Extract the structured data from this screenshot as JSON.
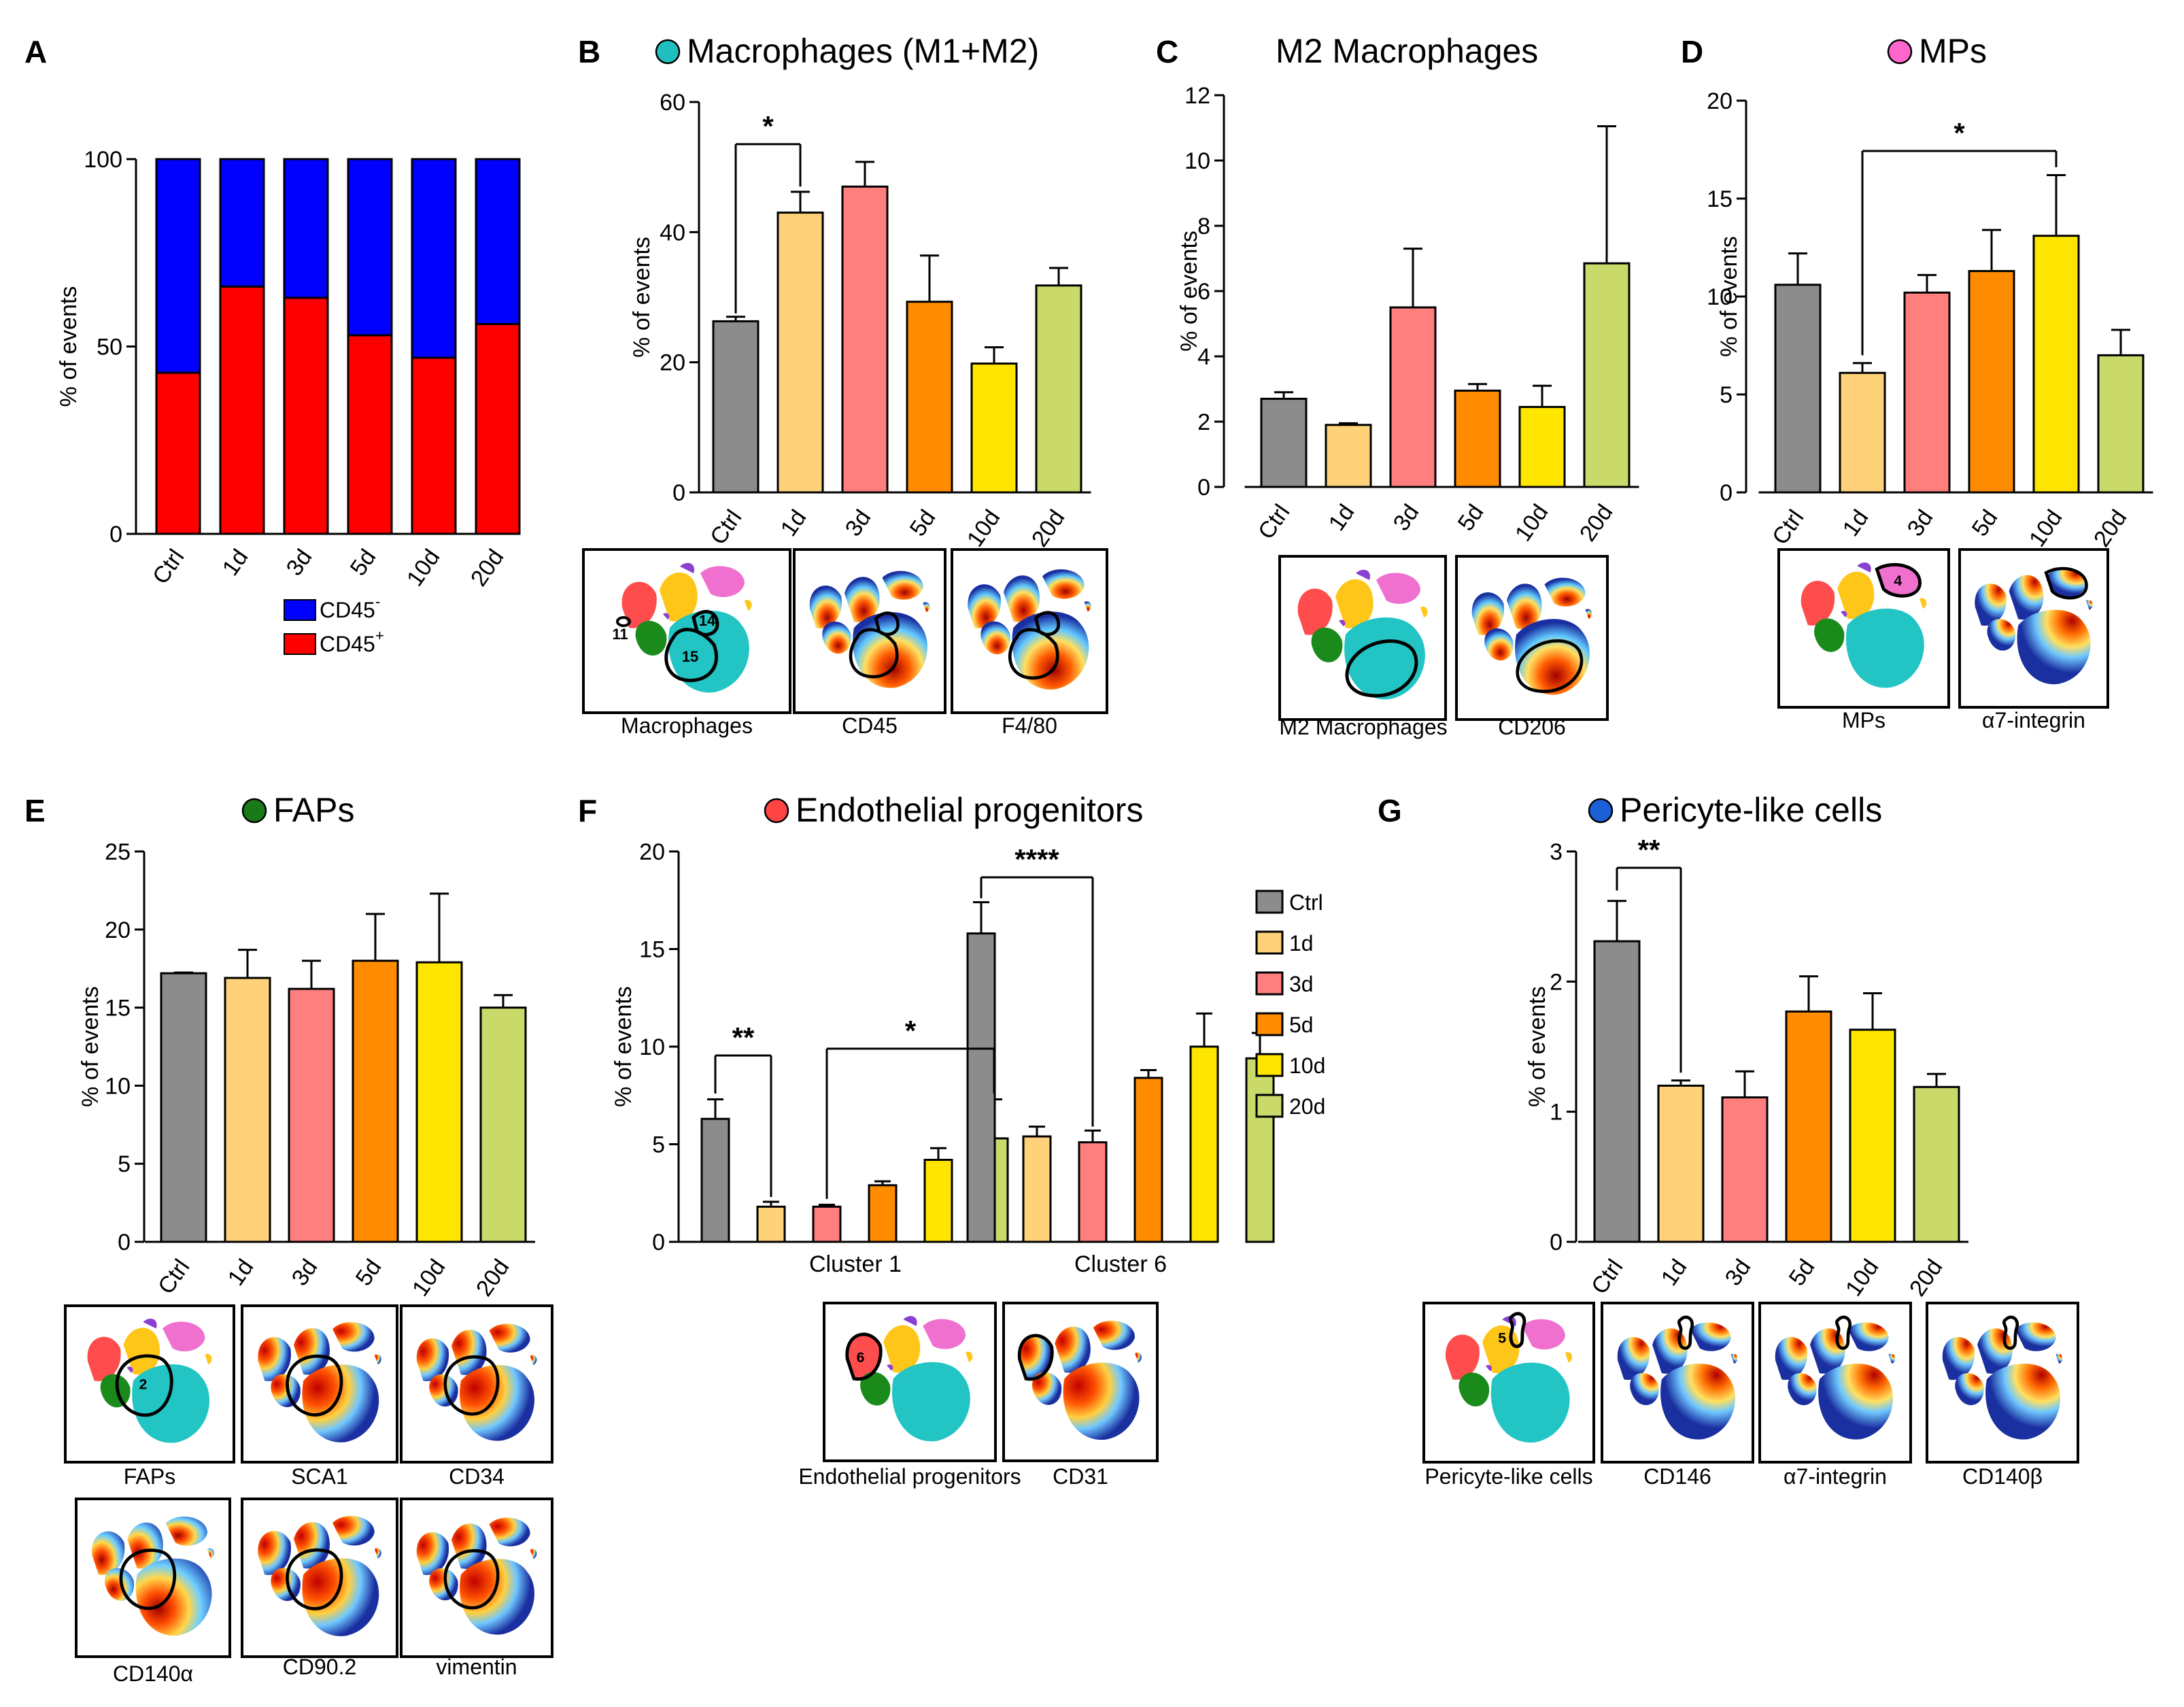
{
  "colors": {
    "ctrl": "#8c8c8c",
    "d1": "#ffd27a",
    "d3": "#ff7f7f",
    "d5": "#ff8c00",
    "d10": "#ffe600",
    "d20": "#c9d96a",
    "cd45_neg": "#0000ff",
    "cd45_pos": "#ff0000",
    "macrophage_dot": "#1fbfbf",
    "mp_dot": "#ff66cc",
    "fap_dot": "#1a7a1a",
    "endo_dot": "#ff4444",
    "pericyte_dot": "#1a5fd6"
  },
  "group_labels": [
    "Ctrl",
    "1d",
    "3d",
    "5d",
    "10d",
    "20d"
  ],
  "ylabel": "% of events",
  "panels": {
    "A": {
      "letter": "A",
      "legend": {
        "neg": "CD45",
        "neg_sup": "-",
        "pos": "CD45",
        "pos_sup": "+"
      }
    },
    "B": {
      "letter": "B",
      "title": "Macrophages (M1+M2)",
      "tsne": [
        {
          "label": "Macrophages",
          "clusters": [
            "11",
            "14",
            "15"
          ]
        },
        {
          "label": "CD45"
        },
        {
          "label": "F4/80"
        }
      ]
    },
    "C": {
      "letter": "C",
      "title": "M2 Macrophages",
      "tsne": [
        {
          "label": "M2 Macrophages"
        },
        {
          "label": "CD206"
        }
      ]
    },
    "D": {
      "letter": "D",
      "title": "MPs",
      "tsne": [
        {
          "label": "MPs",
          "clusters": [
            "4"
          ]
        },
        {
          "label": "α7-integrin"
        }
      ]
    },
    "E": {
      "letter": "E",
      "title": "FAPs",
      "tsne": [
        {
          "label": "FAPs",
          "clusters": [
            "2"
          ]
        },
        {
          "label": "SCA1"
        },
        {
          "label": "CD34"
        },
        {
          "label": "CD140α"
        },
        {
          "label": "CD90.2"
        },
        {
          "label": "vimentin"
        }
      ]
    },
    "F": {
      "letter": "F",
      "title": "Endothelial progenitors",
      "tsne": [
        {
          "label": "Endothelial progenitors",
          "clusters": [
            "6"
          ]
        },
        {
          "label": "CD31"
        }
      ]
    },
    "G": {
      "letter": "G",
      "title": "Pericyte-like cells",
      "tsne": [
        {
          "label": "Pericyte-like cells",
          "clusters": [
            "5"
          ]
        },
        {
          "label": "CD146"
        },
        {
          "label": "α7-integrin"
        },
        {
          "label": "CD140β"
        }
      ]
    }
  },
  "chart_data": [
    {
      "id": "A",
      "type": "bar",
      "stacked": true,
      "categories": [
        "Ctrl",
        "1d",
        "3d",
        "5d",
        "10d",
        "20d"
      ],
      "series": [
        {
          "name": "CD45+",
          "values": [
            43,
            66,
            63,
            53,
            47,
            56
          ]
        },
        {
          "name": "CD45-",
          "values": [
            57,
            34,
            37,
            47,
            53,
            44
          ]
        }
      ],
      "ylabel": "% of events",
      "ylim": [
        0,
        100
      ],
      "yticks": [
        0,
        50,
        100
      ]
    },
    {
      "id": "B",
      "type": "bar",
      "title": "Macrophages (M1+M2)",
      "categories": [
        "Ctrl",
        "1d",
        "3d",
        "5d",
        "10d",
        "20d"
      ],
      "values": [
        26.3,
        43,
        47,
        29.3,
        19.8,
        31.8
      ],
      "errors": [
        0.7,
        3.2,
        3.8,
        7.1,
        2.5,
        2.7
      ],
      "ylabel": "% of events",
      "ylim": [
        0,
        60
      ],
      "yticks": [
        0,
        20,
        40,
        60
      ],
      "significance": [
        {
          "from": "Ctrl",
          "to": "1d",
          "label": "*"
        }
      ]
    },
    {
      "id": "C",
      "type": "bar",
      "title": "M2 Macrophages",
      "categories": [
        "Ctrl",
        "1d",
        "3d",
        "5d",
        "10d",
        "20d"
      ],
      "values": [
        2.7,
        1.9,
        5.5,
        2.95,
        2.45,
        6.85
      ],
      "errors": [
        0.2,
        0.05,
        1.8,
        0.2,
        0.65,
        4.2
      ],
      "ylabel": "% of events",
      "ylim": [
        0,
        12
      ],
      "yticks": [
        0,
        2,
        4,
        6,
        8,
        10,
        12
      ]
    },
    {
      "id": "D",
      "type": "bar",
      "title": "MPs",
      "categories": [
        "Ctrl",
        "1d",
        "3d",
        "5d",
        "10d",
        "20d"
      ],
      "values": [
        10.6,
        6.1,
        10.2,
        11.3,
        13.1,
        7.0
      ],
      "errors": [
        1.6,
        0.5,
        0.9,
        2.1,
        3.1,
        1.3
      ],
      "ylabel": "% of events",
      "ylim": [
        0,
        20
      ],
      "yticks": [
        0,
        5,
        10,
        15,
        20
      ],
      "significance": [
        {
          "from": "1d",
          "to": "10d",
          "label": "*"
        }
      ]
    },
    {
      "id": "E",
      "type": "bar",
      "title": "FAPs",
      "categories": [
        "Ctrl",
        "1d",
        "3d",
        "5d",
        "10d",
        "20d"
      ],
      "values": [
        17.2,
        16.9,
        16.2,
        18.0,
        17.9,
        15.0
      ],
      "errors": [
        0.05,
        1.8,
        1.8,
        3.0,
        4.4,
        0.8
      ],
      "ylabel": "% of events",
      "ylim": [
        0,
        25
      ],
      "yticks": [
        0,
        5,
        10,
        15,
        20,
        25
      ]
    },
    {
      "id": "F",
      "type": "bar",
      "title": "Endothelial progenitors",
      "categories": [
        "Cluster 1",
        "Cluster 6"
      ],
      "series": [
        {
          "name": "Ctrl",
          "values": [
            6.3,
            15.8
          ],
          "errors": [
            1.0,
            1.6
          ]
        },
        {
          "name": "1d",
          "values": [
            1.8,
            5.4
          ],
          "errors": [
            0.25,
            0.5
          ]
        },
        {
          "name": "3d",
          "values": [
            1.8,
            5.1
          ],
          "errors": [
            0.1,
            0.6
          ]
        },
        {
          "name": "5d",
          "values": [
            2.9,
            8.4
          ],
          "errors": [
            0.2,
            0.4
          ]
        },
        {
          "name": "10d",
          "values": [
            4.2,
            10.0
          ],
          "errors": [
            0.6,
            1.7
          ]
        },
        {
          "name": "20d",
          "values": [
            5.3,
            9.4
          ],
          "errors": [
            2.0,
            1.3
          ]
        }
      ],
      "ylabel": "% of events",
      "ylim": [
        0,
        20
      ],
      "yticks": [
        0,
        5,
        10,
        15,
        20
      ],
      "significance": [
        {
          "group": "Cluster 1",
          "from": "Ctrl",
          "to": "1d",
          "label": "**"
        },
        {
          "group": "Cluster 1",
          "from": "3d",
          "to": "20d",
          "label": "*"
        },
        {
          "group": "Cluster 6",
          "from": "Ctrl",
          "to": "3d",
          "label": "****"
        }
      ],
      "legend": [
        "Ctrl",
        "1d",
        "3d",
        "5d",
        "10d",
        "20d"
      ]
    },
    {
      "id": "G",
      "type": "bar",
      "title": "Pericyte-like cells",
      "categories": [
        "Ctrl",
        "1d",
        "3d",
        "5d",
        "10d",
        "20d"
      ],
      "values": [
        2.31,
        1.2,
        1.11,
        1.77,
        1.63,
        1.19
      ],
      "errors": [
        0.31,
        0.04,
        0.2,
        0.27,
        0.28,
        0.1
      ],
      "ylabel": "% of events",
      "ylim": [
        0,
        3
      ],
      "yticks": [
        0,
        1,
        2,
        3
      ],
      "significance": [
        {
          "from": "Ctrl",
          "to": "1d",
          "label": "**"
        }
      ]
    }
  ]
}
